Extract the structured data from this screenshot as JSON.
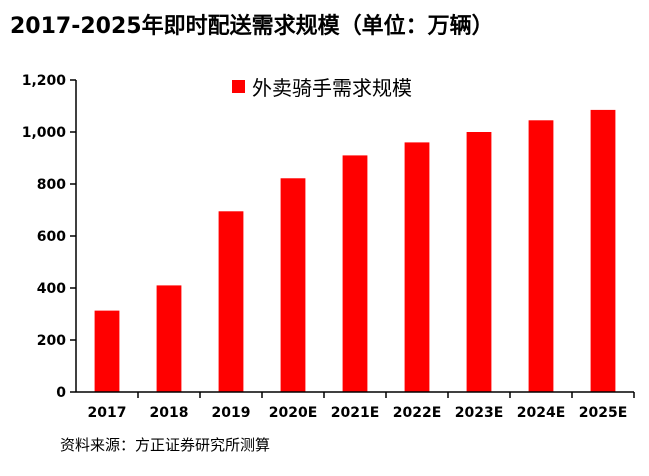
{
  "chart_data": {
    "type": "bar",
    "title": "2017-2025年即时配送需求规模（单位：万辆）",
    "categories": [
      "2017",
      "2018",
      "2019",
      "2020E",
      "2021E",
      "2022E",
      "2023E",
      "2024E",
      "2025E"
    ],
    "series": [
      {
        "name": "外卖骑手需求规模",
        "values": [
          313,
          410,
          695,
          822,
          910,
          960,
          1000,
          1045,
          1085
        ],
        "color": "#ff0000"
      }
    ],
    "xlabel": "",
    "ylabel": "",
    "ylim": [
      0,
      1200
    ],
    "yticks": [
      0,
      200,
      400,
      600,
      800,
      1000,
      1200
    ],
    "ytick_labels": [
      "0",
      "200",
      "400",
      "600",
      "800",
      "1,000",
      "1,200"
    ],
    "grid": false,
    "legend_position": "top-center",
    "source": "资料来源：方正证券研究所测算"
  }
}
